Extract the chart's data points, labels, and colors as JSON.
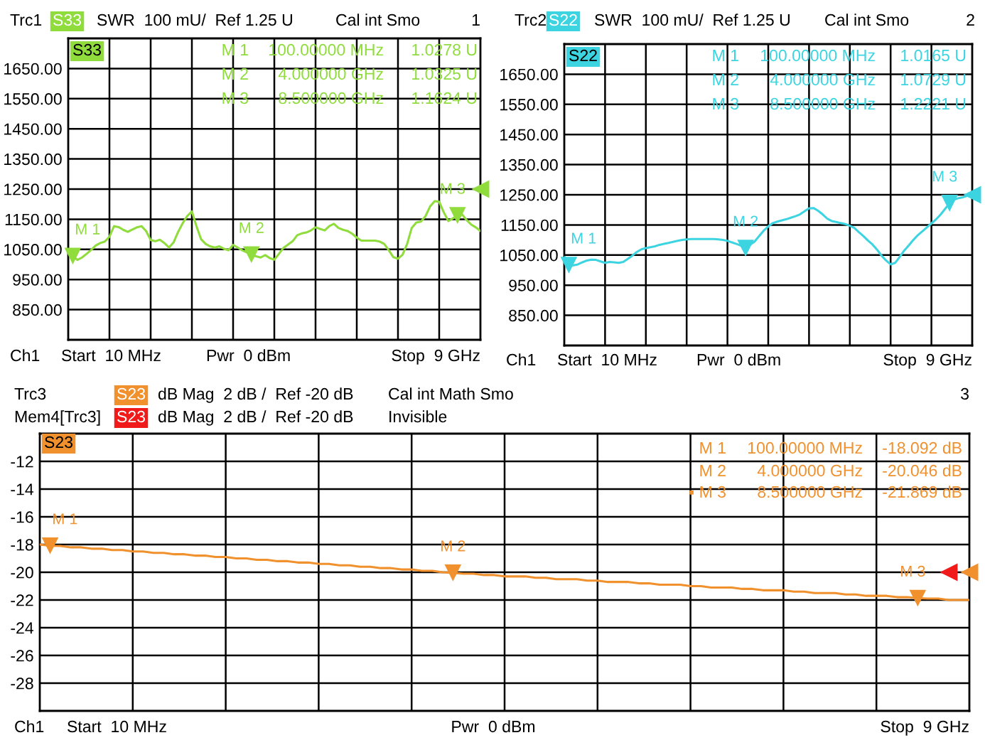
{
  "chart_data": [
    {
      "type": "line",
      "categories": [
        null,
        null,
        null,
        null,
        null,
        null,
        null,
        null,
        null,
        null,
        null,
        null,
        null,
        null,
        null,
        null,
        null,
        null,
        null,
        null,
        null,
        null,
        null,
        null,
        null,
        null,
        null,
        null,
        null,
        null,
        null,
        null,
        null,
        null,
        null,
        null,
        null,
        null,
        null,
        null,
        null,
        null,
        null,
        null,
        null,
        null,
        null,
        null,
        null,
        null,
        null,
        null,
        null,
        null,
        null,
        null,
        null,
        null,
        null,
        null,
        null,
        null,
        null,
        null,
        null,
        null,
        null,
        null,
        null,
        null,
        null,
        null,
        null,
        null,
        null,
        null,
        null,
        null,
        null,
        null,
        null,
        null,
        null,
        null,
        null,
        null,
        null,
        null,
        null,
        null,
        null
      ],
      "series": [
        {
          "color": "#8fdc3c",
          "values": [
            1045,
            1027.8,
            1015,
            1023,
            1035,
            1048,
            1063,
            1071,
            1076,
            1092,
            1127,
            1124,
            1115,
            1108,
            1116,
            1123,
            1127,
            1111,
            1081,
            1077,
            1082,
            1071,
            1056,
            1073,
            1108,
            1137,
            1161,
            1176,
            1127,
            1084,
            1068,
            1060,
            1056,
            1060,
            1052,
            1047,
            1065,
            1056,
            1047,
            1040,
            1032.5,
            1027,
            1023,
            1031,
            1021,
            1016,
            1035,
            1055,
            1066,
            1077,
            1097,
            1103,
            1106,
            1113,
            1123,
            1118,
            1113,
            1127,
            1135,
            1121,
            1115,
            1111,
            1102,
            1089,
            1079,
            1079,
            1079,
            1079,
            1076,
            1068,
            1047,
            1024,
            1019,
            1032,
            1068,
            1121,
            1139,
            1142,
            1160,
            1192,
            1210,
            1208,
            1173,
            1144,
            1153,
            1162.4,
            1166,
            1147,
            1132,
            1123,
            1111
          ]
        },
        {
          "type": "scatter",
          "marker": "triangle",
          "color": "#8fdc3c",
          "values": [
            null,
            1027.8,
            null,
            null,
            null,
            null,
            null,
            null,
            null,
            null,
            null,
            null,
            null,
            null,
            null,
            null,
            null,
            null,
            null,
            null,
            null,
            null,
            null,
            null,
            null,
            null,
            null,
            null,
            null,
            null,
            null,
            null,
            null,
            null,
            null,
            null,
            null,
            null,
            null,
            null,
            1032.5,
            null,
            null,
            null,
            null,
            null,
            null,
            null,
            null,
            null,
            null,
            null,
            null,
            null,
            null,
            null,
            null,
            null,
            null,
            null,
            null,
            null,
            null,
            null,
            null,
            null,
            null,
            null,
            null,
            null,
            null,
            null,
            null,
            null,
            null,
            null,
            null,
            null,
            null,
            null,
            null,
            null,
            null,
            null,
            null,
            1162.4,
            null,
            null,
            null,
            null,
            null
          ]
        },
        {
          "type": "scatter",
          "marker": "triangle",
          "color": "#8fdc3c",
          "values": [
            null,
            null,
            null,
            null,
            null,
            null,
            null,
            null,
            null,
            null,
            null,
            null,
            null,
            null,
            null,
            null,
            null,
            null,
            null,
            null,
            null,
            null,
            null,
            null,
            null,
            null,
            null,
            null,
            null,
            null,
            null,
            null,
            null,
            null,
            null,
            null,
            null,
            null,
            null,
            null,
            null,
            null,
            null,
            null,
            null,
            null,
            null,
            null,
            null,
            null,
            null,
            null,
            null,
            null,
            null,
            null,
            null,
            null,
            null,
            null,
            null,
            null,
            null,
            null,
            null,
            null,
            null,
            null,
            null,
            null,
            null,
            null,
            null,
            null,
            null,
            null,
            null,
            null,
            null,
            null,
            null,
            null,
            null,
            null,
            null,
            null,
            null,
            null,
            null,
            null,
            1250
          ]
        }
      ],
      "ylim": [
        750,
        1750
      ],
      "yticks": [
        {
          "value": 850,
          "label": "850.00"
        },
        {
          "value": 950,
          "label": "950.00"
        },
        {
          "value": 1050,
          "label": "1050.00"
        },
        {
          "value": 1150,
          "label": "1150.00"
        },
        {
          "value": 1250,
          "label": "1250.00"
        },
        {
          "value": 1350,
          "label": "1350.00"
        },
        {
          "value": 1450,
          "label": "1450.00"
        },
        {
          "value": 1550,
          "label": "1550.00"
        },
        {
          "value": 1650,
          "label": "1650.00"
        }
      ],
      "grid": true,
      "annotations": [
        "Trc1",
        "S33",
        "SWR  100 mU/  Ref 1.25 U",
        "Cal int Smo",
        "1",
        "S33",
        "M 1",
        "100.00000 MHz",
        "1.0278 U",
        "M 2",
        "4.000000 GHz",
        "1.0325 U",
        "M 3",
        "8.500000 GHz",
        "1.1624 U",
        "Ch1",
        "Start  10 MHz",
        "Pwr  0 dBm",
        "Stop  9 GHz",
        {
          "text": "M 1",
          "y": 1027.8
        },
        {
          "text": "M 2",
          "y": 1032.5
        },
        {
          "text": "M 3",
          "y": 1162.4
        }
      ]
    },
    {
      "type": "line",
      "categories": [
        null,
        null,
        null,
        null,
        null,
        null,
        null,
        null,
        null,
        null,
        null,
        null,
        null,
        null,
        null,
        null,
        null,
        null,
        null,
        null,
        null,
        null,
        null,
        null,
        null,
        null,
        null,
        null,
        null,
        null,
        null,
        null,
        null,
        null,
        null,
        null,
        null,
        null,
        null,
        null,
        null,
        null,
        null,
        null,
        null,
        null,
        null,
        null,
        null,
        null,
        null,
        null,
        null,
        null,
        null,
        null,
        null,
        null,
        null,
        null,
        null,
        null,
        null,
        null,
        null,
        null,
        null,
        null,
        null,
        null,
        null,
        null,
        null,
        null,
        null,
        null,
        null,
        null,
        null,
        null,
        null,
        null,
        null,
        null,
        null,
        null,
        null,
        null,
        null,
        null,
        null
      ],
      "series": [
        {
          "color": "#3cd4e0",
          "values": [
            1044,
            1016.5,
            1016,
            1019,
            1026,
            1032,
            1035,
            1034,
            1029,
            1024,
            1027,
            1026,
            1024,
            1027,
            1037,
            1048,
            1060,
            1069,
            1073,
            1076,
            1079,
            1084,
            1087,
            1090,
            1094,
            1097,
            1100,
            1102,
            1103,
            1103,
            1103,
            1103,
            1103,
            1103,
            1102,
            1100,
            1097,
            1092,
            1087,
            1081,
            1072.9,
            1084,
            1095,
            1113,
            1131,
            1145,
            1156,
            1161,
            1165,
            1169,
            1174,
            1179,
            1185,
            1195,
            1205,
            1206,
            1197,
            1185,
            1171,
            1163,
            1160,
            1156,
            1153,
            1147,
            1140,
            1126,
            1113,
            1098,
            1085,
            1068,
            1048,
            1032,
            1019,
            1024,
            1044,
            1065,
            1082,
            1100,
            1116,
            1129,
            1142,
            1155,
            1168,
            1184,
            1203,
            1222.1,
            1234,
            1239,
            1242,
            1247,
            1253
          ]
        },
        {
          "type": "scatter",
          "marker": "triangle",
          "color": "#3cd4e0",
          "values": [
            null,
            1016.5,
            null,
            null,
            null,
            null,
            null,
            null,
            null,
            null,
            null,
            null,
            null,
            null,
            null,
            null,
            null,
            null,
            null,
            null,
            null,
            null,
            null,
            null,
            null,
            null,
            null,
            null,
            null,
            null,
            null,
            null,
            null,
            null,
            null,
            null,
            null,
            null,
            null,
            null,
            1072.9,
            null,
            null,
            null,
            null,
            null,
            null,
            null,
            null,
            null,
            null,
            null,
            null,
            null,
            null,
            null,
            null,
            null,
            null,
            null,
            null,
            null,
            null,
            null,
            null,
            null,
            null,
            null,
            null,
            null,
            null,
            null,
            null,
            null,
            null,
            null,
            null,
            null,
            null,
            null,
            null,
            null,
            null,
            null,
            null,
            1222.1,
            null,
            null,
            null,
            null,
            null
          ]
        },
        {
          "type": "scatter",
          "marker": "triangle",
          "color": "#3cd4e0",
          "values": [
            null,
            null,
            null,
            null,
            null,
            null,
            null,
            null,
            null,
            null,
            null,
            null,
            null,
            null,
            null,
            null,
            null,
            null,
            null,
            null,
            null,
            null,
            null,
            null,
            null,
            null,
            null,
            null,
            null,
            null,
            null,
            null,
            null,
            null,
            null,
            null,
            null,
            null,
            null,
            null,
            null,
            null,
            null,
            null,
            null,
            null,
            null,
            null,
            null,
            null,
            null,
            null,
            null,
            null,
            null,
            null,
            null,
            null,
            null,
            null,
            null,
            null,
            null,
            null,
            null,
            null,
            null,
            null,
            null,
            null,
            null,
            null,
            null,
            null,
            null,
            null,
            null,
            null,
            null,
            null,
            null,
            null,
            null,
            null,
            null,
            null,
            null,
            null,
            null,
            null,
            1250
          ]
        }
      ],
      "ylim": [
        750,
        1750
      ],
      "yticks": [
        {
          "value": 850,
          "label": "850.00"
        },
        {
          "value": 950,
          "label": "950.00"
        },
        {
          "value": 1050,
          "label": "1050.00"
        },
        {
          "value": 1150,
          "label": "1150.00"
        },
        {
          "value": 1250,
          "label": "1250.00"
        },
        {
          "value": 1350,
          "label": "1350.00"
        },
        {
          "value": 1450,
          "label": "1450.00"
        },
        {
          "value": 1550,
          "label": "1550.00"
        },
        {
          "value": 1650,
          "label": "1650.00"
        }
      ],
      "grid": true,
      "annotations": [
        "Trc2",
        "S22",
        "SWR  100 mU/  Ref 1.25 U",
        "Cal int Smo",
        "2",
        "S22",
        "M 1",
        "100.00000 MHz",
        "1.0165 U",
        "M 2",
        "4.000000 GHz",
        "1.0729 U",
        "M 3",
        "8.500000 GHz",
        "1.2221 U",
        "Ch1",
        "Start  10 MHz",
        "Pwr  0 dBm",
        "Stop  9 GHz",
        {
          "text": "M 1",
          "y": 1016.5
        },
        {
          "text": "M 2",
          "y": 1072.9
        },
        {
          "text": "M 3",
          "y": 1222.1
        }
      ]
    },
    {
      "type": "line",
      "categories": [
        null,
        null,
        null,
        null,
        null,
        null,
        null,
        null,
        null,
        null,
        null,
        null,
        null,
        null,
        null,
        null,
        null,
        null,
        null,
        null,
        null,
        null,
        null,
        null,
        null,
        null,
        null,
        null,
        null,
        null,
        null,
        null,
        null,
        null,
        null,
        null,
        null,
        null,
        null,
        null,
        null,
        null,
        null,
        null,
        null,
        null,
        null,
        null,
        null,
        null,
        null,
        null,
        null,
        null,
        null,
        null,
        null,
        null,
        null,
        null,
        null,
        null,
        null,
        null,
        null,
        null,
        null,
        null,
        null,
        null,
        null,
        null,
        null,
        null,
        null,
        null,
        null,
        null,
        null,
        null,
        null,
        null,
        null,
        null,
        null,
        null,
        null,
        null,
        null,
        null,
        null
      ],
      "series": [
        {
          "color": "#f0912e",
          "values": [
            -18.0,
            -18.092,
            -18.1,
            -18.2,
            -18.2,
            -18.3,
            -18.3,
            -18.4,
            -18.4,
            -18.5,
            -18.5,
            -18.6,
            -18.6,
            -18.7,
            -18.7,
            -18.8,
            -18.8,
            -18.9,
            -18.9,
            -19.0,
            -19.0,
            -19.1,
            -19.1,
            -19.2,
            -19.2,
            -19.3,
            -19.3,
            -19.4,
            -19.4,
            -19.5,
            -19.5,
            -19.6,
            -19.6,
            -19.7,
            -19.7,
            -19.8,
            -19.8,
            -19.9,
            -19.9,
            -20.0,
            -20.046,
            -20.1,
            -20.1,
            -20.2,
            -20.2,
            -20.3,
            -20.3,
            -20.3,
            -20.4,
            -20.4,
            -20.5,
            -20.5,
            -20.5,
            -20.6,
            -20.6,
            -20.7,
            -20.7,
            -20.7,
            -20.8,
            -20.8,
            -20.9,
            -20.9,
            -20.9,
            -21.0,
            -21.0,
            -21.1,
            -21.1,
            -21.1,
            -21.2,
            -21.2,
            -21.3,
            -21.3,
            -21.3,
            -21.4,
            -21.4,
            -21.5,
            -21.5,
            -21.5,
            -21.6,
            -21.6,
            -21.7,
            -21.7,
            -21.7,
            -21.8,
            -21.8,
            -21.869,
            -21.9,
            -21.9,
            -22.0,
            -22.0,
            -22.0
          ]
        },
        {
          "type": "scatter",
          "marker": "triangle",
          "color": "#f0912e",
          "values": [
            null,
            -18.092,
            null,
            null,
            null,
            null,
            null,
            null,
            null,
            null,
            null,
            null,
            null,
            null,
            null,
            null,
            null,
            null,
            null,
            null,
            null,
            null,
            null,
            null,
            null,
            null,
            null,
            null,
            null,
            null,
            null,
            null,
            null,
            null,
            null,
            null,
            null,
            null,
            null,
            null,
            -20.046,
            null,
            null,
            null,
            null,
            null,
            null,
            null,
            null,
            null,
            null,
            null,
            null,
            null,
            null,
            null,
            null,
            null,
            null,
            null,
            null,
            null,
            null,
            null,
            null,
            null,
            null,
            null,
            null,
            null,
            null,
            null,
            null,
            null,
            null,
            null,
            null,
            null,
            null,
            null,
            null,
            null,
            null,
            null,
            null,
            -21.869,
            null,
            null,
            null,
            null,
            null
          ]
        },
        {
          "type": "scatter",
          "marker": "triangle",
          "color": "#f0912e",
          "values": [
            null,
            null,
            null,
            null,
            null,
            null,
            null,
            null,
            null,
            null,
            null,
            null,
            null,
            null,
            null,
            null,
            null,
            null,
            null,
            null,
            null,
            null,
            null,
            null,
            null,
            null,
            null,
            null,
            null,
            null,
            null,
            null,
            null,
            null,
            null,
            null,
            null,
            null,
            null,
            null,
            null,
            null,
            null,
            null,
            null,
            null,
            null,
            null,
            null,
            null,
            null,
            null,
            null,
            null,
            null,
            null,
            null,
            null,
            null,
            null,
            null,
            null,
            null,
            null,
            null,
            null,
            null,
            null,
            null,
            null,
            null,
            null,
            null,
            null,
            null,
            null,
            null,
            null,
            null,
            null,
            null,
            null,
            null,
            null,
            null,
            null,
            null,
            null,
            null,
            null,
            -20
          ]
        },
        {
          "type": "scatter",
          "marker": "triangle",
          "color": "#f01a1a",
          "values": [
            null,
            null,
            null,
            null,
            null,
            null,
            null,
            null,
            null,
            null,
            null,
            null,
            null,
            null,
            null,
            null,
            null,
            null,
            null,
            null,
            null,
            null,
            null,
            null,
            null,
            null,
            null,
            null,
            null,
            null,
            null,
            null,
            null,
            null,
            null,
            null,
            null,
            null,
            null,
            null,
            null,
            null,
            null,
            null,
            null,
            null,
            null,
            null,
            null,
            null,
            null,
            null,
            null,
            null,
            null,
            null,
            null,
            null,
            null,
            null,
            null,
            null,
            null,
            null,
            null,
            null,
            null,
            null,
            null,
            null,
            null,
            null,
            null,
            null,
            null,
            null,
            null,
            null,
            null,
            null,
            null,
            null,
            null,
            null,
            null,
            null,
            null,
            null,
            -20,
            null,
            null
          ]
        }
      ],
      "ylim": [
        -30,
        -10
      ],
      "yticks": [
        -28,
        -26,
        -24,
        -22,
        -20,
        -18,
        -16,
        -14,
        -12
      ],
      "grid": true,
      "annotations": [
        "Trc3",
        "S23",
        "dB Mag  2 dB /  Ref -20 dB",
        "Cal int Math Smo",
        "3",
        "Mem4[Trc3]",
        "S23",
        "dB Mag  2 dB /  Ref -20 dB",
        "Invisible",
        "S23",
        "M 1",
        "100.00000 MHz",
        "-18.092 dB",
        "M 2",
        "4.000000 GHz",
        "-20.046 dB",
        "▪ M 3",
        "8.500000 GHz",
        "-21.869 dB",
        "Ch1",
        "Start  10 MHz",
        "Pwr  0 dBm",
        "Stop  9 GHz",
        {
          "text": "M 1",
          "y": -18.092
        },
        {
          "text": "M 2",
          "y": -20.046
        },
        {
          "text": "M 3",
          "y": -21.869
        }
      ]
    }
  ]
}
